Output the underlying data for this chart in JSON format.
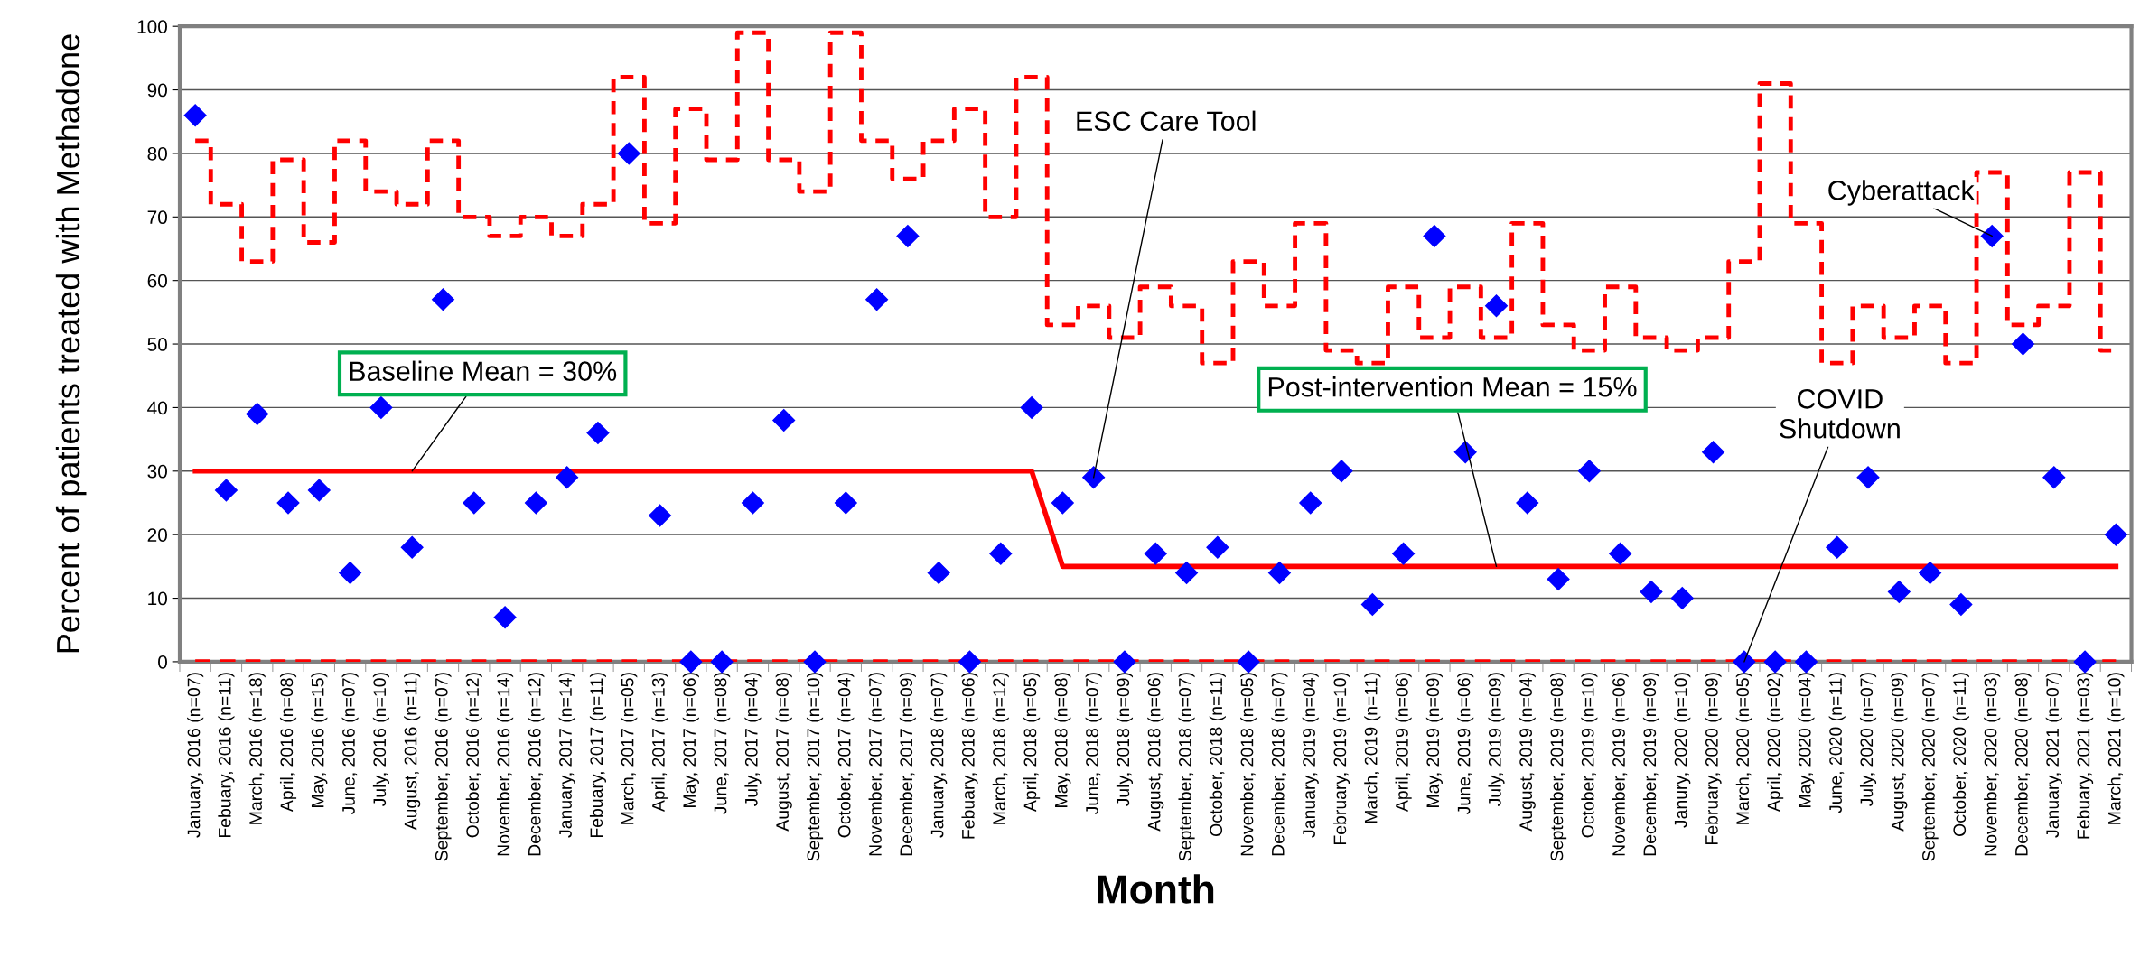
{
  "chart_data": {
    "type": "scatter",
    "ylabel": "Percent of patients treated with Methadone",
    "xlabel": "Month",
    "categories": [
      "January, 2016 (n=07)",
      "Febuary, 2016 (n=11)",
      "March, 2016 (n=18)",
      "April, 2016 (n=08)",
      "May, 2016 (n=15)",
      "June, 2016 (n=07)",
      "July, 2016 (n=10)",
      "August, 2016 (n=11)",
      "September, 2016 (n=07)",
      "October, 2016 (n=12)",
      "November, 2016 (n=14)",
      "December, 2016 (n=12)",
      "January, 2017 (n=14)",
      "Febuary, 2017 (n=11)",
      "March, 2017 (n=05)",
      "April, 2017 (n=13)",
      "May, 2017 (n=06)",
      "June, 2017 (n=08)",
      "July, 2017 (n=04)",
      "August, 2017 (n=08)",
      "September, 2017 (n=10)",
      "October, 2017 (n=04)",
      "November, 2017 (n=07)",
      "December, 2017 (n=09)",
      "January, 2018 (n=07)",
      "Febuary, 2018 (n=06)",
      "March, 2018 (n=12)",
      "April, 2018 (n=05)",
      "May, 2018 (n=08)",
      "June, 2018 (n=07)",
      "July, 2018 (n=09)",
      "August, 2018 (n=06)",
      "September, 2018 (n=07)",
      "October, 2018 (n=11)",
      "November, 2018 (n=05)",
      "December, 2018 (n=07)",
      "January, 2019 (n=04)",
      "February, 2019 (n=10)",
      "March, 2019 (n=11)",
      "April, 2019 (n=06)",
      "May, 2019 (n=09)",
      "June, 2019 (n=06)",
      "July, 2019 (n=09)",
      "August, 2019 (n=04)",
      "September, 2019 (n=08)",
      "October, 2019 (n=10)",
      "November, 2019 (n=06)",
      "December, 2019 (n=09)",
      "Janury, 2020 (n=10)",
      "February, 2020 (n=09)",
      "March, 2020 (n=05)",
      "April, 2020 (n=02)",
      "May, 2020 (n=04)",
      "June, 2020 (n=11)",
      "July, 2020 (n=07)",
      "August, 2020 (n=09)",
      "September, 2020 (n=07)",
      "October, 2020 (n=11)",
      "November, 2020 (n=03)",
      "December, 2020 (n=08)",
      "January, 2021 (n=07)",
      "Febuary, 2021 (n=03)",
      "March, 2021 (n=10)"
    ],
    "series": [
      {
        "type": "step",
        "color": "#ff0000",
        "line_style": "dashed",
        "values": [
          82,
          72,
          63,
          79,
          66,
          82,
          74,
          72,
          82,
          70,
          67,
          70,
          67,
          72,
          92,
          69,
          87,
          79,
          99,
          79,
          74,
          99,
          82,
          76,
          82,
          87,
          70,
          92,
          53,
          56,
          51,
          59,
          56,
          47,
          63,
          56,
          69,
          49,
          47,
          59,
          51,
          59,
          51,
          69,
          53,
          49,
          59,
          51,
          49,
          51,
          63,
          91,
          69,
          47,
          56,
          51,
          56,
          47,
          77,
          53,
          56,
          77,
          49
        ]
      },
      {
        "type": "line",
        "color": "#ff0000",
        "line_style": "dashed",
        "values": [
          0,
          0,
          0,
          0,
          0,
          0,
          0,
          0,
          0,
          0,
          0,
          0,
          0,
          0,
          0,
          0,
          0,
          0,
          0,
          0,
          0,
          0,
          0,
          0,
          0,
          0,
          0,
          0,
          0,
          0,
          0,
          0,
          0,
          0,
          0,
          0,
          0,
          0,
          0,
          0,
          0,
          0,
          0,
          0,
          0,
          0,
          0,
          0,
          0,
          0,
          0,
          0,
          0,
          0,
          0,
          0,
          0,
          0,
          0,
          0,
          0,
          0,
          0
        ]
      },
      {
        "type": "line",
        "color": "#ff0000",
        "line_style": "solid",
        "values": [
          30,
          30,
          30,
          30,
          30,
          30,
          30,
          30,
          30,
          30,
          30,
          30,
          30,
          30,
          30,
          30,
          30,
          30,
          30,
          30,
          30,
          30,
          30,
          30,
          30,
          30,
          30,
          30,
          15,
          15,
          15,
          15,
          15,
          15,
          15,
          15,
          15,
          15,
          15,
          15,
          15,
          15,
          15,
          15,
          15,
          15,
          15,
          15,
          15,
          15,
          15,
          15,
          15,
          15,
          15,
          15,
          15,
          15,
          15,
          15,
          15,
          15,
          15
        ]
      },
      {
        "color": "#0000ff",
        "marker": "diamond",
        "values": [
          86,
          27,
          39,
          25,
          27,
          14,
          40,
          18,
          57,
          25,
          7,
          25,
          29,
          36,
          80,
          23,
          0,
          0,
          25,
          38,
          0,
          25,
          57,
          67,
          14,
          0,
          17,
          40,
          25,
          29,
          0,
          17,
          14,
          18,
          0,
          14,
          25,
          30,
          9,
          17,
          67,
          33,
          56,
          25,
          13,
          30,
          17,
          11,
          10,
          33,
          0,
          0,
          0,
          18,
          29,
          11,
          14,
          9,
          67,
          50,
          29,
          0,
          20
        ]
      }
    ],
    "ylim": [
      0,
      100
    ],
    "yticks": [
      0,
      10,
      20,
      30,
      40,
      50,
      60,
      70,
      80,
      90,
      100
    ],
    "grid": "y",
    "legend": false,
    "annotations": [
      {
        "text": "Baseline Mean = 30%",
        "x": "August, 2016 (n=11)",
        "y": 30
      },
      {
        "text": "ESC Care Tool",
        "x": "June, 2018 (n=07)",
        "y": 29
      },
      {
        "text": "Post-intervention Mean = 15%",
        "x": "July, 2019 (n=09)",
        "y": 15
      },
      {
        "text": "Cyberattack",
        "x": "November, 2020 (n=03)",
        "y": 67
      },
      {
        "text": "COVID\nShutdown",
        "x": "March, 2020 (n=05)",
        "y": 0
      }
    ]
  }
}
